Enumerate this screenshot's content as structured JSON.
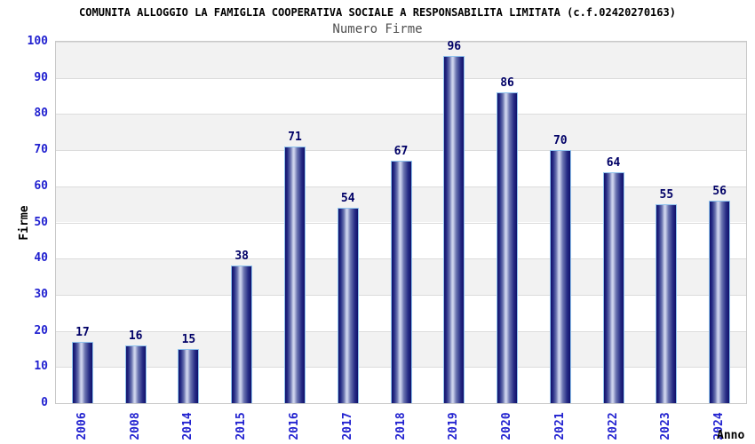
{
  "chart_data": {
    "type": "bar",
    "title": "COMUNITA ALLOGGIO LA FAMIGLIA COOPERATIVA SOCIALE A RESPONSABILITA LIMITATA (c.f.02420270163)",
    "subtitle": "Numero Firme",
    "categories": [
      "2006",
      "2008",
      "2014",
      "2015",
      "2016",
      "2017",
      "2018",
      "2019",
      "2020",
      "2021",
      "2022",
      "2023",
      "2024"
    ],
    "values": [
      17,
      16,
      15,
      38,
      71,
      54,
      67,
      96,
      86,
      70,
      64,
      55,
      56
    ],
    "xlabel": "Anno",
    "ylabel": "Firme",
    "ylim": [
      0,
      100
    ],
    "ytick_step": 10,
    "grid": true,
    "legend": false,
    "band_pattern": "alternating horizontal bands, white from 0, gray stripes on odd bands"
  },
  "colors": {
    "tick_label": "#2222d0",
    "value_label": "#000066",
    "band_gray": "#f2f2f2",
    "band_white": "#ffffff",
    "gridline": "#dcdcdc",
    "plot_border": "#c8c8c8",
    "bar_dark": "#10106a",
    "bar_mid": "#6a74b0",
    "bar_light": "#ccd2ec",
    "bar_border": "#8fc3ee",
    "title_color": "#000000",
    "subtitle_color": "#505050",
    "axis_title_color": "#000000"
  }
}
